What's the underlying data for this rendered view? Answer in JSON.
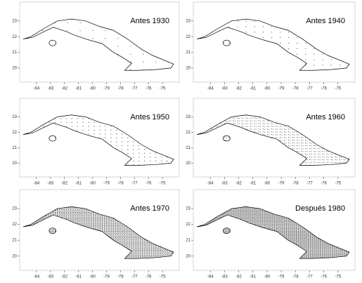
{
  "maps": [
    {
      "title": "Antes 1930",
      "xlim": [
        -85.2,
        -73.8
      ],
      "ylim": [
        19.1,
        24.2
      ],
      "xticks": [
        -84,
        -83,
        -82,
        -81,
        -80,
        -79,
        -78,
        -77,
        -76,
        -75
      ],
      "yticks": [
        20,
        21,
        22,
        23
      ]
    },
    {
      "title": "Antes 1940",
      "xlim": [
        -85.2,
        -73.8
      ],
      "ylim": [
        19.1,
        24.2
      ],
      "xticks": [
        -84,
        -83,
        -82,
        -81,
        -80,
        -79,
        -78,
        -77,
        -76,
        -75
      ],
      "yticks": [
        20,
        21,
        22,
        23
      ]
    },
    {
      "title": "Antes 1950",
      "xlim": [
        -85.2,
        -73.8
      ],
      "ylim": [
        19.1,
        24.2
      ],
      "xticks": [
        -84,
        -83,
        -82,
        -81,
        -80,
        -79,
        -78,
        -77,
        -76,
        -75
      ],
      "yticks": [
        20,
        21,
        22,
        23
      ]
    },
    {
      "title": "Antes 1960",
      "xlim": [
        -85.2,
        -73.8
      ],
      "ylim": [
        19.1,
        24.2
      ],
      "xticks": [
        -84,
        -83,
        -82,
        -81,
        -80,
        -79,
        -78,
        -77,
        -76,
        -75
      ],
      "yticks": [
        20,
        21,
        22,
        23
      ]
    },
    {
      "title": "Antes 1970",
      "xlim": [
        -85.2,
        -73.8
      ],
      "ylim": [
        19.1,
        24.2
      ],
      "xticks": [
        -84,
        -83,
        -82,
        -81,
        -80,
        -79,
        -78,
        -77,
        -76,
        -75
      ],
      "yticks": [
        20,
        21,
        22,
        23
      ]
    },
    {
      "title": "Después 1980",
      "xlim": [
        -85.2,
        -73.8
      ],
      "ylim": [
        19.1,
        24.2
      ],
      "xticks": [
        -84,
        -83,
        -82,
        -81,
        -80,
        -79,
        -78,
        -77,
        -76,
        -75
      ],
      "yticks": [
        20,
        21,
        22,
        23
      ]
    }
  ]
}
